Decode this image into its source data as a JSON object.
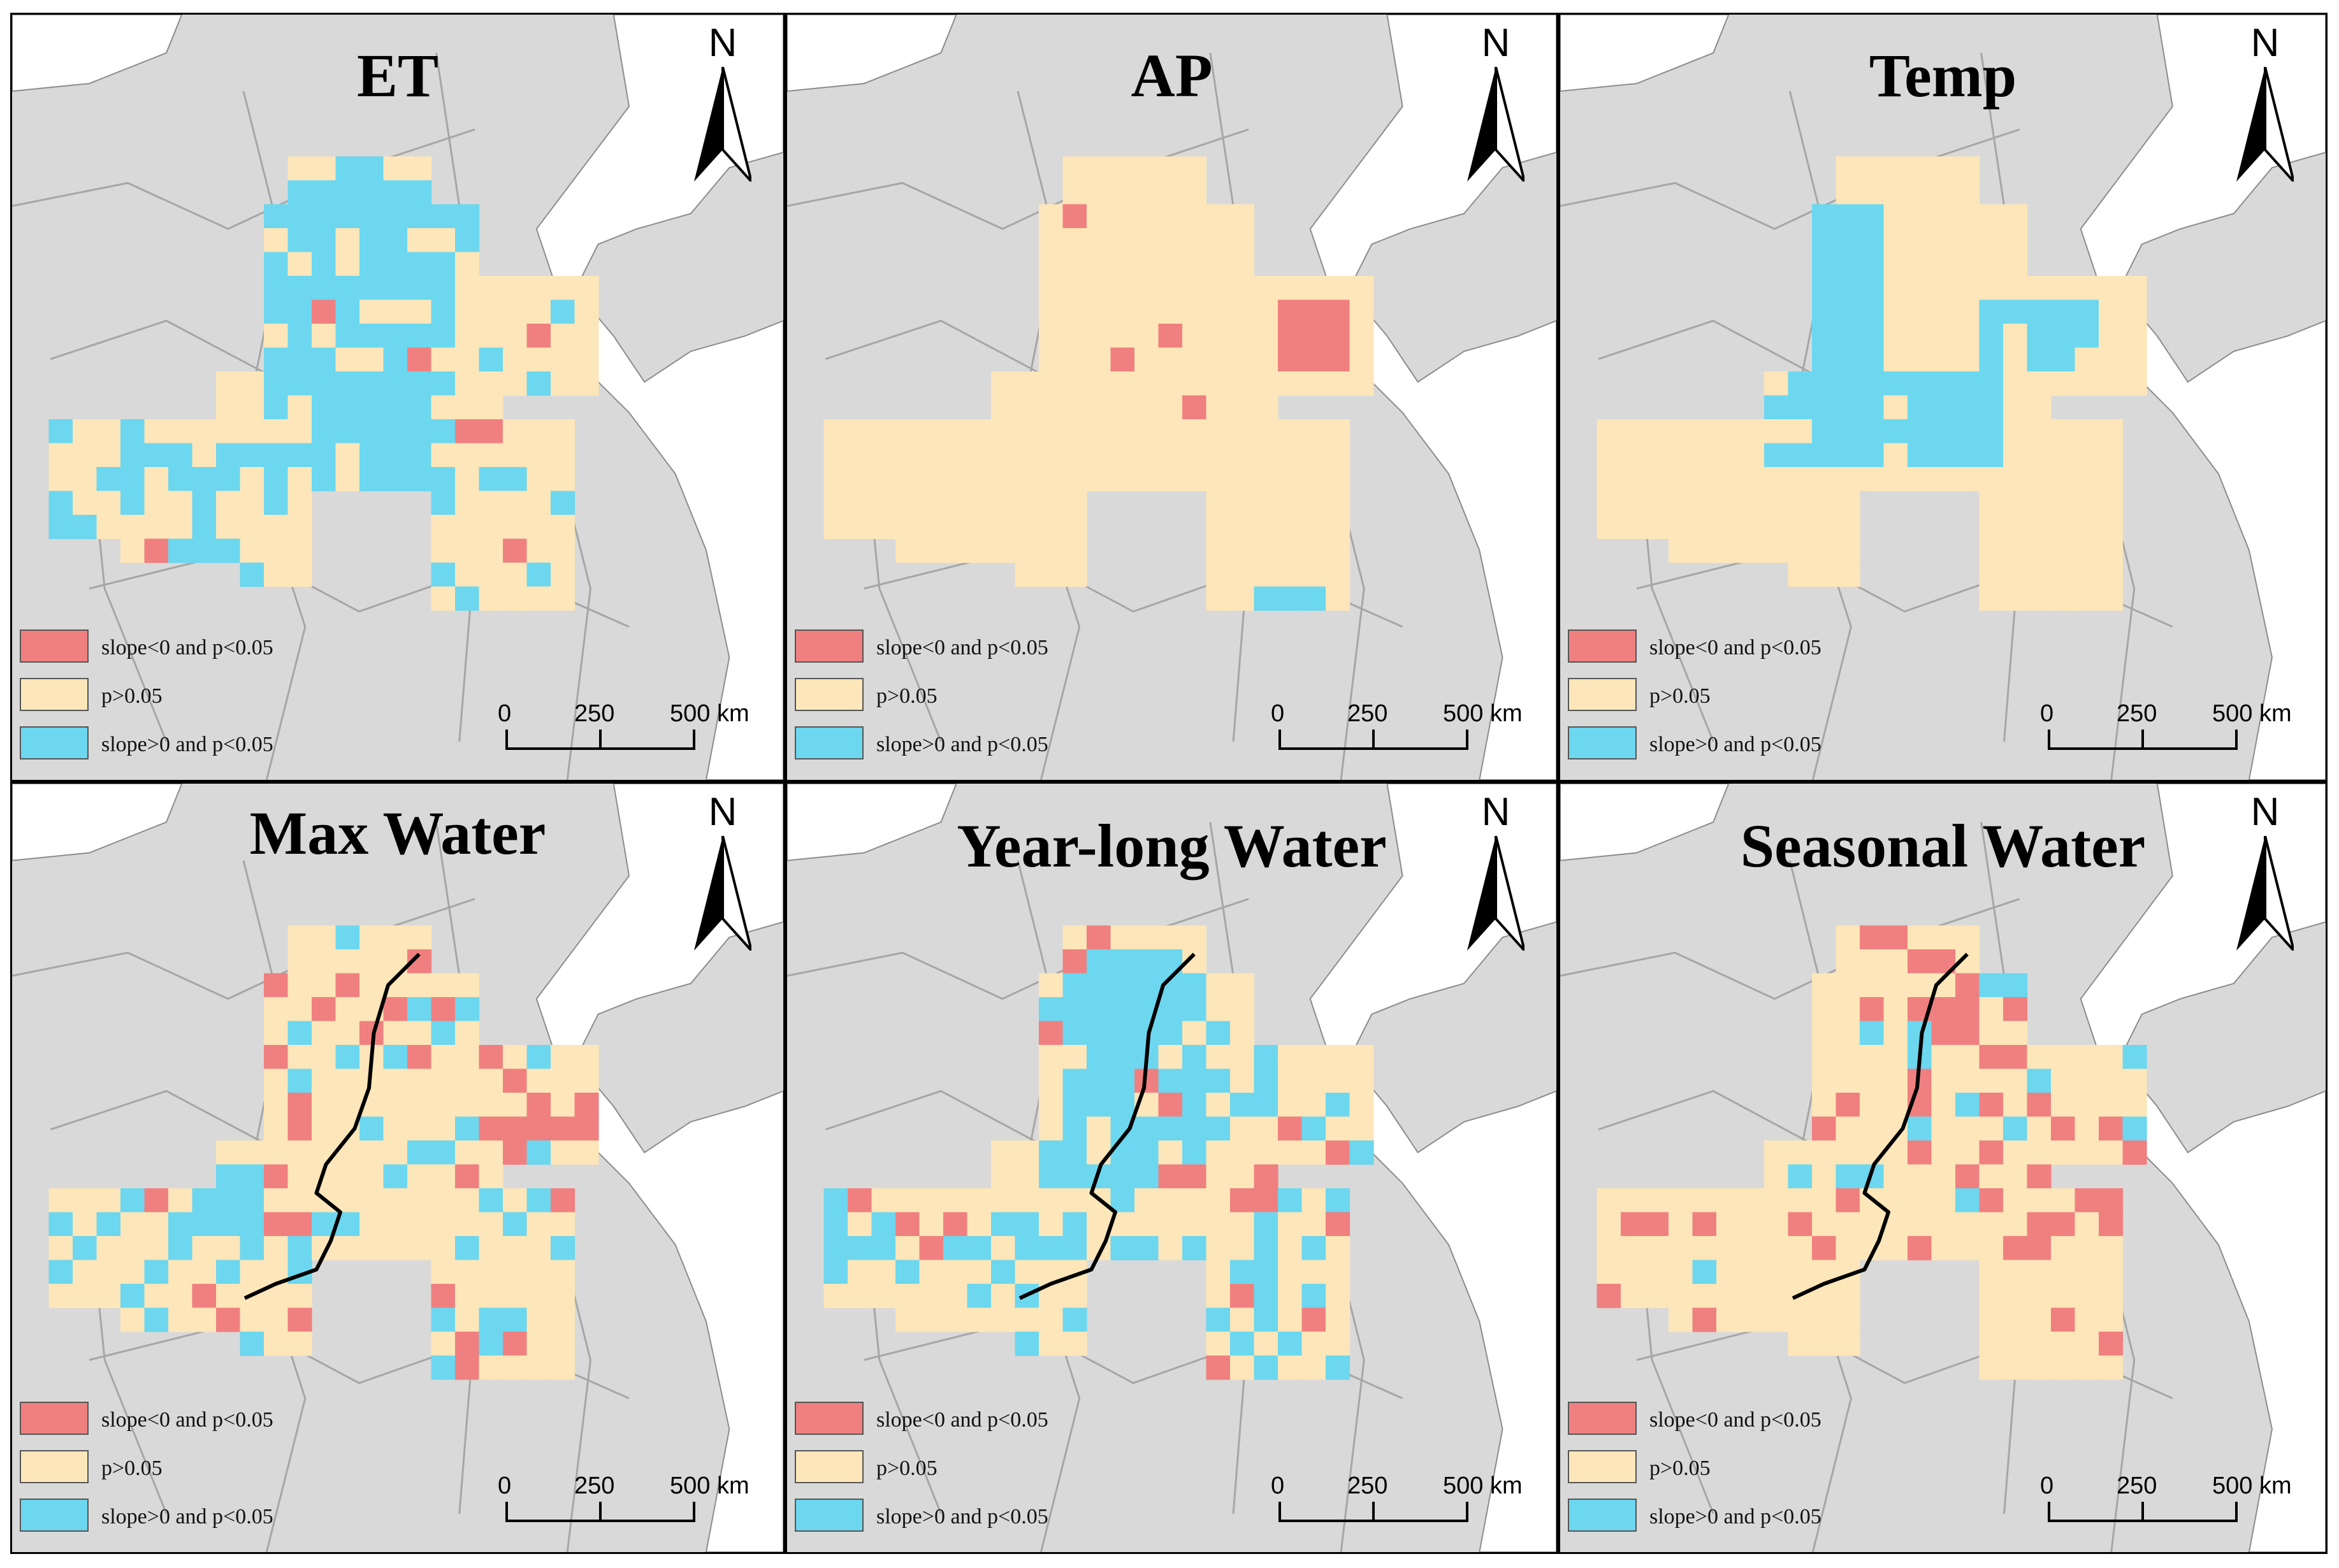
{
  "colors": {
    "background_land": "#d9d9d9",
    "province_border": "#a6a6a6",
    "sea": "#ffffff",
    "slope_negative": "#f08080",
    "not_significant": "#fde6b9",
    "slope_positive": "#6cd7ef",
    "river": "#000000"
  },
  "legend": {
    "negative": "slope<0 and p<0.05",
    "neutral": "p>0.05",
    "positive": "slope>0 and p<0.05"
  },
  "north_label": "N",
  "scale": {
    "tick0": "0",
    "tick1": "250",
    "tick2": "500 km"
  },
  "panels": [
    {
      "id": "et",
      "title": "ET"
    },
    {
      "id": "ap",
      "title": "AP"
    },
    {
      "id": "temp",
      "title": "Temp"
    },
    {
      "id": "max-water",
      "title": "Max Water"
    },
    {
      "id": "year-long-water",
      "title": "Year-long Water"
    },
    {
      "id": "seasonal-water",
      "title": "Seasonal Water"
    }
  ]
}
